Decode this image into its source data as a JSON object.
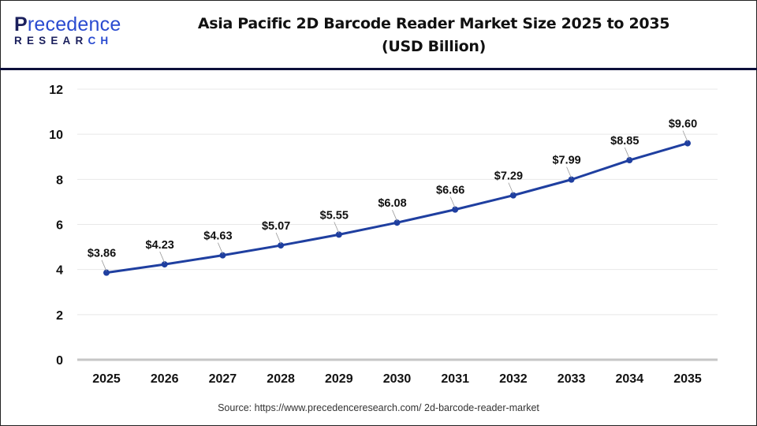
{
  "logo": {
    "line1_first": "P",
    "line1_rest": "recedence",
    "line2_main": "RESEAR",
    "line2_accent": "CH"
  },
  "title": {
    "line1": "Asia Pacific 2D Barcode Reader Market Size 2025 to 2035",
    "line2": "(USD Billion)"
  },
  "source": "Source: https://www.precedenceresearch.com/ 2d-barcode-reader-market",
  "colors": {
    "line": "#1f3fa0",
    "marker": "#1f3fa0",
    "gridline": "#e8e8e8",
    "baseline": "#c6c6c6",
    "header_rule": "#0c0f3a"
  },
  "chart_data": {
    "type": "line",
    "title": "Asia Pacific 2D Barcode Reader Market Size 2025 to 2035 (USD Billion)",
    "xlabel": "",
    "ylabel": "",
    "categories": [
      "2025",
      "2026",
      "2027",
      "2028",
      "2029",
      "2030",
      "2031",
      "2032",
      "2033",
      "2034",
      "2035"
    ],
    "series": [
      {
        "name": "Market Size (USD Billion)",
        "values": [
          3.86,
          4.23,
          4.63,
          5.07,
          5.55,
          6.08,
          6.66,
          7.29,
          7.99,
          8.85,
          9.6
        ]
      }
    ],
    "data_labels": [
      "$3.86",
      "$4.23",
      "$4.63",
      "$5.07",
      "$5.55",
      "$6.08",
      "$6.66",
      "$7.29",
      "$7.99",
      "$8.85",
      "$9.60"
    ],
    "yticks": [
      "0",
      "2",
      "4",
      "6",
      "8",
      "10",
      "12"
    ],
    "ylim": [
      0,
      12
    ],
    "grid": true,
    "legend": "none"
  }
}
